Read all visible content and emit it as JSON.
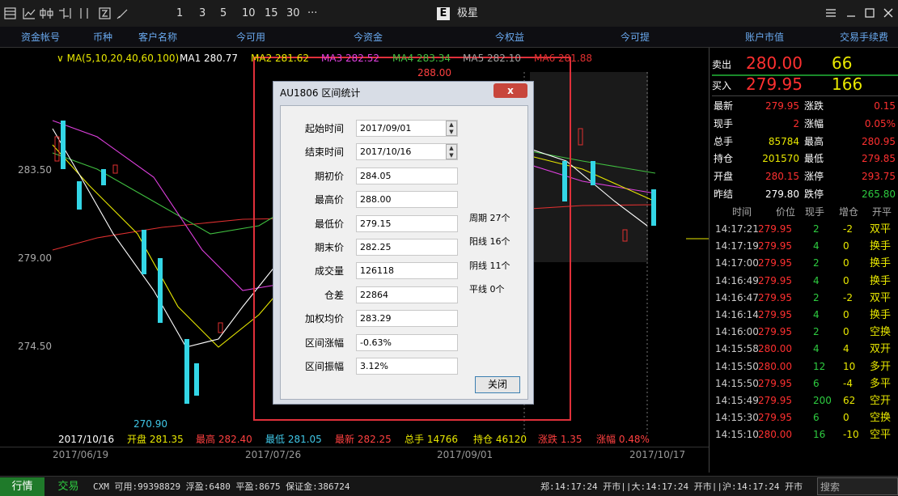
{
  "toolbar": {
    "periods": [
      "1",
      "3",
      "5",
      "10",
      "15",
      "30",
      "···"
    ],
    "app_name": "极星"
  },
  "account_header": [
    "资金帐号",
    "币种",
    "客户名称",
    "今可用",
    "今资金",
    "今权益",
    "今可提",
    "账户市值",
    "交易手续费"
  ],
  "chart": {
    "ma_legend": "MA(5,10,20,40,60,100)",
    "ma_values": [
      {
        "label": "MA1 280.77",
        "color": "#ffffff"
      },
      {
        "label": "MA2 281.62",
        "color": "#e8e800"
      },
      {
        "label": "MA3 282.52",
        "color": "#e040e0"
      },
      {
        "label": "MA4 283.34",
        "color": "#40c040"
      },
      {
        "label": "MA5 282.10",
        "color": "#a0a0a0"
      },
      {
        "label": "MA6 281.88",
        "color": "#e03030"
      }
    ],
    "price_labels": [
      "283.50",
      "279.00",
      "274.50"
    ],
    "high_marker": "288.00",
    "low_marker": "270.90",
    "info_date": "2017/10/16",
    "info": [
      {
        "label": "开盘 281.35",
        "color": "#e8e800"
      },
      {
        "label": "最高 282.40",
        "color": "#ff4040"
      },
      {
        "label": "最低 281.05",
        "color": "#40c8e8"
      },
      {
        "label": "最新 282.25",
        "color": "#ff4040"
      },
      {
        "label": "总手 14766",
        "color": "#e8e800"
      },
      {
        "label": "持仓 46120",
        "color": "#e8e800"
      },
      {
        "label": "涨跌 1.35",
        "color": "#ff4040"
      },
      {
        "label": "涨幅 0.48%",
        "color": "#ff4040"
      }
    ],
    "dates": [
      "2017/06/19",
      "2017/07/26",
      "2017/09/01",
      "2017/10/17"
    ]
  },
  "dialog": {
    "title": "AU1806 区间统计",
    "fields": [
      {
        "label": "起始时间",
        "value": "2017/09/01"
      },
      {
        "label": "结束时间",
        "value": "2017/10/16"
      },
      {
        "label": "期初价",
        "value": "284.05"
      },
      {
        "label": "最高价",
        "value": "288.00"
      },
      {
        "label": "最低价",
        "value": "279.15"
      },
      {
        "label": "期末价",
        "value": "282.25"
      },
      {
        "label": "成交量",
        "value": "126118"
      },
      {
        "label": "仓差",
        "value": "22864"
      },
      {
        "label": "加权均价",
        "value": "283.29"
      },
      {
        "label": "区间涨幅",
        "value": "-0.63%"
      },
      {
        "label": "区间振幅",
        "value": "3.12%"
      }
    ],
    "counts": [
      "周期 27个",
      "阳线 16个",
      "阴线 11个",
      "平线 0个"
    ],
    "close_button": "关闭"
  },
  "quote": {
    "sell": {
      "label": "卖出",
      "price": "280.00",
      "volume": "66"
    },
    "buy": {
      "label": "买入",
      "price": "279.95",
      "volume": "166"
    },
    "rows": [
      [
        "最新",
        "279.95",
        "涨跌",
        "0.15"
      ],
      [
        "现手",
        "2",
        "涨幅",
        "0.05%"
      ],
      [
        "总手",
        "85784",
        "最高",
        "280.95"
      ],
      [
        "持仓",
        "201570",
        "最低",
        "279.85"
      ],
      [
        "开盘",
        "280.15",
        "涨停",
        "293.75"
      ],
      [
        "昨结",
        "279.80",
        "跌停",
        "265.80"
      ]
    ],
    "tick_header": [
      "时间",
      "价位",
      "现手",
      "增仓",
      "开平"
    ],
    "ticks": [
      [
        "14:17:21",
        "279.95",
        "2",
        "-2",
        "双平"
      ],
      [
        "14:17:19",
        "279.95",
        "4",
        "0",
        "换手"
      ],
      [
        "14:17:00",
        "279.95",
        "2",
        "0",
        "换手"
      ],
      [
        "14:16:49",
        "279.95",
        "4",
        "0",
        "换手"
      ],
      [
        "14:16:47",
        "279.95",
        "2",
        "-2",
        "双平"
      ],
      [
        "14:16:14",
        "279.95",
        "4",
        "0",
        "换手"
      ],
      [
        "14:16:00",
        "279.95",
        "2",
        "0",
        "空换"
      ],
      [
        "14:15:58",
        "280.00",
        "4",
        "4",
        "双开"
      ],
      [
        "14:15:50",
        "280.00",
        "12",
        "10",
        "多开"
      ],
      [
        "14:15:50",
        "279.95",
        "6",
        "-4",
        "多平"
      ],
      [
        "14:15:49",
        "279.95",
        "200",
        "62",
        "空开"
      ],
      [
        "14:15:30",
        "279.95",
        "6",
        "0",
        "空换"
      ],
      [
        "14:15:10",
        "280.00",
        "16",
        "-10",
        "空平"
      ]
    ]
  },
  "status": {
    "tab_quote": "行情",
    "tab_trade": "交易",
    "account": "CXM 可用:99398829 浮盈:6480 平盈:8675 保证金:386724",
    "exchanges": "郑:14:17:24 开市||大:14:17:24 开市||沪:14:17:24 开市",
    "search": "搜索"
  }
}
